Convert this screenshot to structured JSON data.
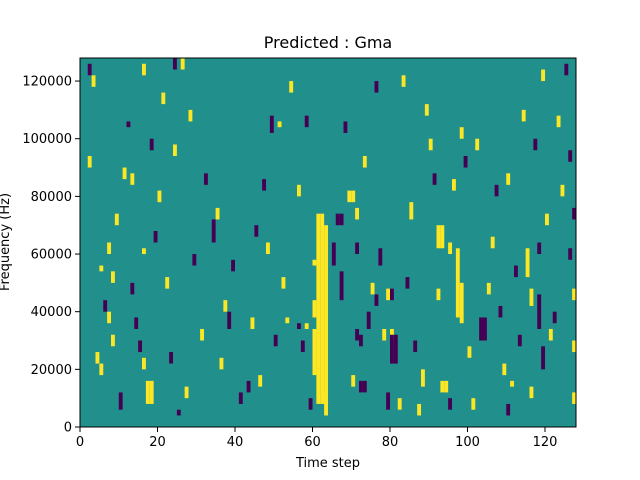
{
  "chart_data": {
    "type": "heatmap",
    "title": "Predicted : Gma",
    "xlabel": "Time step",
    "ylabel": "Frequency (Hz)",
    "xlim": [
      0,
      128
    ],
    "ylim": [
      0,
      128000
    ],
    "grid": false,
    "x_ticks": [
      0,
      20,
      40,
      60,
      80,
      100,
      120
    ],
    "x_tick_labels": [
      "0",
      "20",
      "40",
      "60",
      "80",
      "100",
      "120"
    ],
    "y_ticks": [
      0,
      20000,
      40000,
      60000,
      80000,
      100000,
      120000
    ],
    "y_tick_labels": [
      "0",
      "20000",
      "40000",
      "60000",
      "80000",
      "100000",
      "120000"
    ],
    "value_levels": {
      "low": -1,
      "mid": 0,
      "high": 1
    },
    "colors": {
      "low": "#440154",
      "mid": "#21908d",
      "high": "#fde725"
    },
    "freq_bin_hz": 2000,
    "cells": [
      {
        "t": 2,
        "f0": 122000,
        "f1": 126000,
        "v": -1
      },
      {
        "t": 3,
        "f0": 118000,
        "f1": 122000,
        "v": 1
      },
      {
        "t": 2,
        "f0": 90000,
        "f1": 94000,
        "v": 1
      },
      {
        "t": 5,
        "f0": 54000,
        "f1": 56000,
        "v": 1
      },
      {
        "t": 4,
        "f0": 22000,
        "f1": 26000,
        "v": 1
      },
      {
        "t": 5,
        "f0": 18000,
        "f1": 22000,
        "v": 1
      },
      {
        "t": 7,
        "f0": 60000,
        "f1": 64000,
        "v": 1
      },
      {
        "t": 8,
        "f0": 50000,
        "f1": 54000,
        "v": 1
      },
      {
        "t": 7,
        "f0": 36000,
        "f1": 40000,
        "v": 1
      },
      {
        "t": 8,
        "f0": 28000,
        "f1": 32000,
        "v": 1
      },
      {
        "t": 10,
        "f0": 6000,
        "f1": 12000,
        "v": -1
      },
      {
        "t": 12,
        "f0": 104000,
        "f1": 106000,
        "v": -1
      },
      {
        "t": 16,
        "f0": 122000,
        "f1": 126000,
        "v": 1
      },
      {
        "t": 13,
        "f0": 84000,
        "f1": 88000,
        "v": 1
      },
      {
        "t": 16,
        "f0": 60000,
        "f1": 62000,
        "v": 1
      },
      {
        "t": 14,
        "f0": 34000,
        "f1": 38000,
        "v": -1
      },
      {
        "t": 16,
        "f0": 20000,
        "f1": 24000,
        "v": 1
      },
      {
        "t": 17,
        "f0": 8000,
        "f1": 16000,
        "v": 1
      },
      {
        "t": 18,
        "f0": 8000,
        "f1": 16000,
        "v": 1
      },
      {
        "t": 21,
        "f0": 112000,
        "f1": 116000,
        "v": 1
      },
      {
        "t": 24,
        "f0": 94000,
        "f1": 98000,
        "v": 1
      },
      {
        "t": 25,
        "f0": 4000,
        "f1": 6000,
        "v": -1
      },
      {
        "t": 28,
        "f0": 106000,
        "f1": 110000,
        "v": 1
      },
      {
        "t": 31,
        "f0": 30000,
        "f1": 34000,
        "v": 1
      },
      {
        "t": 34,
        "f0": 64000,
        "f1": 72000,
        "v": -1
      },
      {
        "t": 37,
        "f0": 40000,
        "f1": 44000,
        "v": 1
      },
      {
        "t": 38,
        "f0": 34000,
        "f1": 40000,
        "v": -1
      },
      {
        "t": 43,
        "f0": 12000,
        "f1": 16000,
        "v": -1
      },
      {
        "t": 47,
        "f0": 82000,
        "f1": 86000,
        "v": -1
      },
      {
        "t": 49,
        "f0": 102000,
        "f1": 108000,
        "v": -1
      },
      {
        "t": 51,
        "f0": 104000,
        "f1": 106000,
        "v": 1
      },
      {
        "t": 53,
        "f0": 36000,
        "f1": 38000,
        "v": 1
      },
      {
        "t": 56,
        "f0": 34000,
        "f1": 36000,
        "v": -1
      },
      {
        "t": 58,
        "f0": 34000,
        "f1": 36000,
        "v": 1
      },
      {
        "t": 60,
        "f0": 56000,
        "f1": 58000,
        "v": 1
      },
      {
        "t": 60,
        "f0": 38000,
        "f1": 44000,
        "v": 1
      },
      {
        "t": 61,
        "f0": 8000,
        "f1": 74000,
        "v": 1
      },
      {
        "t": 62,
        "f0": 8000,
        "f1": 74000,
        "v": 1
      },
      {
        "t": 63,
        "f0": 8000,
        "f1": 70000,
        "v": 1
      },
      {
        "t": 60,
        "f0": 18000,
        "f1": 34000,
        "v": 1
      },
      {
        "t": 63,
        "f0": 4000,
        "f1": 12000,
        "v": 1
      },
      {
        "t": 66,
        "f0": 70000,
        "f1": 74000,
        "v": -1
      },
      {
        "t": 67,
        "f0": 70000,
        "f1": 74000,
        "v": -1
      },
      {
        "t": 69,
        "f0": 78000,
        "f1": 82000,
        "v": 1
      },
      {
        "t": 70,
        "f0": 78000,
        "f1": 82000,
        "v": 1
      },
      {
        "t": 71,
        "f0": 72000,
        "f1": 76000,
        "v": 1
      },
      {
        "t": 75,
        "f0": 46000,
        "f1": 50000,
        "v": 1
      },
      {
        "t": 76,
        "f0": 42000,
        "f1": 46000,
        "v": -1
      },
      {
        "t": 71,
        "f0": 30000,
        "f1": 34000,
        "v": -1
      },
      {
        "t": 72,
        "f0": 28000,
        "f1": 32000,
        "v": -1
      },
      {
        "t": 72,
        "f0": 12000,
        "f1": 16000,
        "v": -1
      },
      {
        "t": 73,
        "f0": 12000,
        "f1": 16000,
        "v": -1
      },
      {
        "t": 78,
        "f0": 30000,
        "f1": 34000,
        "v": 1
      },
      {
        "t": 80,
        "f0": 30000,
        "f1": 34000,
        "v": 1
      },
      {
        "t": 79,
        "f0": 44000,
        "f1": 48000,
        "v": 1
      },
      {
        "t": 80,
        "f0": 44000,
        "f1": 48000,
        "v": -1
      },
      {
        "t": 80,
        "f0": 22000,
        "f1": 32000,
        "v": -1
      },
      {
        "t": 81,
        "f0": 22000,
        "f1": 32000,
        "v": -1
      },
      {
        "t": 79,
        "f0": 6000,
        "f1": 12000,
        "v": -1
      },
      {
        "t": 92,
        "f0": 62000,
        "f1": 70000,
        "v": 1
      },
      {
        "t": 93,
        "f0": 62000,
        "f1": 70000,
        "v": 1
      },
      {
        "t": 97,
        "f0": 38000,
        "f1": 62000,
        "v": 1
      },
      {
        "t": 98,
        "f0": 36000,
        "f1": 50000,
        "v": 1
      },
      {
        "t": 93,
        "f0": 12000,
        "f1": 16000,
        "v": 1
      },
      {
        "t": 94,
        "f0": 12000,
        "f1": 16000,
        "v": 1
      },
      {
        "t": 96,
        "f0": 82000,
        "f1": 86000,
        "v": 1
      },
      {
        "t": 98,
        "f0": 100000,
        "f1": 104000,
        "v": 1
      },
      {
        "t": 103,
        "f0": 30000,
        "f1": 38000,
        "v": -1
      },
      {
        "t": 104,
        "f0": 30000,
        "f1": 38000,
        "v": -1
      },
      {
        "t": 111,
        "f0": 14000,
        "f1": 16000,
        "v": 1
      },
      {
        "t": 115,
        "f0": 52000,
        "f1": 62000,
        "v": 1
      },
      {
        "t": 116,
        "f0": 42000,
        "f1": 48000,
        "v": 1
      },
      {
        "t": 118,
        "f0": 34000,
        "f1": 46000,
        "v": -1
      },
      {
        "t": 119,
        "f0": 20000,
        "f1": 28000,
        "v": -1
      },
      {
        "t": 120,
        "f0": 70000,
        "f1": 74000,
        "v": 1
      },
      {
        "t": 126,
        "f0": 92000,
        "f1": 96000,
        "v": -1
      },
      {
        "t": 127,
        "f0": 72000,
        "f1": 76000,
        "v": -1
      },
      {
        "t": 125,
        "f0": 122000,
        "f1": 126000,
        "v": -1
      },
      {
        "t": 127,
        "f0": 44000,
        "f1": 48000,
        "v": 1
      },
      {
        "t": 127,
        "f0": 26000,
        "f1": 30000,
        "v": 1
      },
      {
        "t": 127,
        "f0": 8000,
        "f1": 12000,
        "v": 1
      },
      {
        "t": 20,
        "f0": 78000,
        "f1": 82000,
        "v": 1
      },
      {
        "t": 24,
        "f0": 124000,
        "f1": 128000,
        "v": -1
      },
      {
        "t": 26,
        "f0": 124000,
        "f1": 128000,
        "v": 1
      },
      {
        "t": 35,
        "f0": 72000,
        "f1": 76000,
        "v": 1
      },
      {
        "t": 44,
        "f0": 34000,
        "f1": 38000,
        "v": 1
      },
      {
        "t": 46,
        "f0": 14000,
        "f1": 18000,
        "v": 1
      },
      {
        "t": 48,
        "f0": 60000,
        "f1": 64000,
        "v": 1
      },
      {
        "t": 56,
        "f0": 80000,
        "f1": 84000,
        "v": 1
      },
      {
        "t": 58,
        "f0": 104000,
        "f1": 108000,
        "v": -1
      },
      {
        "t": 65,
        "f0": 56000,
        "f1": 64000,
        "v": -1
      },
      {
        "t": 67,
        "f0": 44000,
        "f1": 54000,
        "v": -1
      },
      {
        "t": 71,
        "f0": 60000,
        "f1": 64000,
        "v": -1
      },
      {
        "t": 74,
        "f0": 34000,
        "f1": 40000,
        "v": -1
      },
      {
        "t": 77,
        "f0": 56000,
        "f1": 62000,
        "v": -1
      },
      {
        "t": 82,
        "f0": 6000,
        "f1": 10000,
        "v": 1
      },
      {
        "t": 85,
        "f0": 72000,
        "f1": 78000,
        "v": 1
      },
      {
        "t": 88,
        "f0": 14000,
        "f1": 20000,
        "v": 1
      },
      {
        "t": 90,
        "f0": 96000,
        "f1": 100000,
        "v": 1
      },
      {
        "t": 95,
        "f0": 60000,
        "f1": 64000,
        "v": 1
      },
      {
        "t": 100,
        "f0": 24000,
        "f1": 28000,
        "v": 1
      },
      {
        "t": 102,
        "f0": 96000,
        "f1": 100000,
        "v": 1
      },
      {
        "t": 106,
        "f0": 62000,
        "f1": 66000,
        "v": 1
      },
      {
        "t": 108,
        "f0": 38000,
        "f1": 42000,
        "v": -1
      },
      {
        "t": 110,
        "f0": 84000,
        "f1": 88000,
        "v": 1
      },
      {
        "t": 112,
        "f0": 52000,
        "f1": 56000,
        "v": -1
      },
      {
        "t": 114,
        "f0": 106000,
        "f1": 110000,
        "v": 1
      },
      {
        "t": 118,
        "f0": 60000,
        "f1": 64000,
        "v": -1
      },
      {
        "t": 121,
        "f0": 30000,
        "f1": 34000,
        "v": 1
      },
      {
        "t": 123,
        "f0": 104000,
        "f1": 108000,
        "v": 1
      },
      {
        "t": 6,
        "f0": 40000,
        "f1": 44000,
        "v": -1
      },
      {
        "t": 9,
        "f0": 70000,
        "f1": 74000,
        "v": 1
      },
      {
        "t": 11,
        "f0": 86000,
        "f1": 90000,
        "v": 1
      },
      {
        "t": 13,
        "f0": 46000,
        "f1": 50000,
        "v": -1
      },
      {
        "t": 15,
        "f0": 26000,
        "f1": 30000,
        "v": -1
      },
      {
        "t": 18,
        "f0": 96000,
        "f1": 100000,
        "v": -1
      },
      {
        "t": 19,
        "f0": 64000,
        "f1": 68000,
        "v": -1
      },
      {
        "t": 22,
        "f0": 48000,
        "f1": 52000,
        "v": 1
      },
      {
        "t": 23,
        "f0": 22000,
        "f1": 26000,
        "v": -1
      },
      {
        "t": 27,
        "f0": 10000,
        "f1": 14000,
        "v": 1
      },
      {
        "t": 29,
        "f0": 56000,
        "f1": 60000,
        "v": -1
      },
      {
        "t": 32,
        "f0": 84000,
        "f1": 88000,
        "v": -1
      },
      {
        "t": 36,
        "f0": 20000,
        "f1": 24000,
        "v": 1
      },
      {
        "t": 39,
        "f0": 54000,
        "f1": 58000,
        "v": -1
      },
      {
        "t": 41,
        "f0": 8000,
        "f1": 12000,
        "v": -1
      },
      {
        "t": 45,
        "f0": 66000,
        "f1": 70000,
        "v": -1
      },
      {
        "t": 50,
        "f0": 28000,
        "f1": 32000,
        "v": -1
      },
      {
        "t": 52,
        "f0": 48000,
        "f1": 52000,
        "v": 1
      },
      {
        "t": 54,
        "f0": 116000,
        "f1": 120000,
        "v": 1
      },
      {
        "t": 57,
        "f0": 26000,
        "f1": 30000,
        "v": -1
      },
      {
        "t": 59,
        "f0": 6000,
        "f1": 10000,
        "v": -1
      },
      {
        "t": 68,
        "f0": 102000,
        "f1": 106000,
        "v": -1
      },
      {
        "t": 70,
        "f0": 14000,
        "f1": 18000,
        "v": 1
      },
      {
        "t": 73,
        "f0": 90000,
        "f1": 94000,
        "v": 1
      },
      {
        "t": 76,
        "f0": 116000,
        "f1": 120000,
        "v": -1
      },
      {
        "t": 83,
        "f0": 118000,
        "f1": 122000,
        "v": 1
      },
      {
        "t": 84,
        "f0": 48000,
        "f1": 52000,
        "v": -1
      },
      {
        "t": 86,
        "f0": 26000,
        "f1": 30000,
        "v": -1
      },
      {
        "t": 87,
        "f0": 4000,
        "f1": 8000,
        "v": 1
      },
      {
        "t": 89,
        "f0": 108000,
        "f1": 112000,
        "v": 1
      },
      {
        "t": 91,
        "f0": 84000,
        "f1": 88000,
        "v": -1
      },
      {
        "t": 92,
        "f0": 44000,
        "f1": 48000,
        "v": 1
      },
      {
        "t": 95,
        "f0": 6000,
        "f1": 10000,
        "v": -1
      },
      {
        "t": 99,
        "f0": 90000,
        "f1": 94000,
        "v": -1
      },
      {
        "t": 101,
        "f0": 6000,
        "f1": 10000,
        "v": 1
      },
      {
        "t": 105,
        "f0": 46000,
        "f1": 50000,
        "v": 1
      },
      {
        "t": 107,
        "f0": 80000,
        "f1": 84000,
        "v": -1
      },
      {
        "t": 109,
        "f0": 18000,
        "f1": 22000,
        "v": 1
      },
      {
        "t": 110,
        "f0": 4000,
        "f1": 8000,
        "v": -1
      },
      {
        "t": 113,
        "f0": 28000,
        "f1": 32000,
        "v": -1
      },
      {
        "t": 116,
        "f0": 10000,
        "f1": 14000,
        "v": 1
      },
      {
        "t": 117,
        "f0": 96000,
        "f1": 100000,
        "v": -1
      },
      {
        "t": 119,
        "f0": 120000,
        "f1": 124000,
        "v": 1
      },
      {
        "t": 122,
        "f0": 36000,
        "f1": 40000,
        "v": -1
      },
      {
        "t": 124,
        "f0": 80000,
        "f1": 84000,
        "v": 1
      },
      {
        "t": 126,
        "f0": 58000,
        "f1": 62000,
        "v": -1
      }
    ]
  }
}
